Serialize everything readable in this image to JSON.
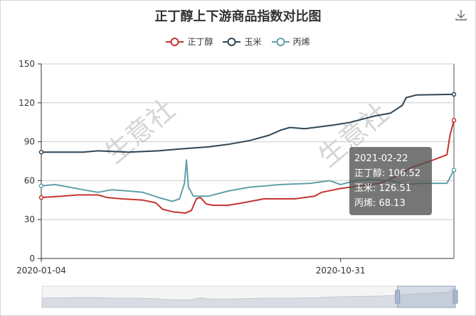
{
  "chart_data": {
    "type": "line",
    "title": "正丁醇上下游商品指数对比图",
    "x_start": "2020-01-04",
    "x_end": "2021-02-22",
    "x_ticks": [
      "2020-01-04",
      "2020-10-31"
    ],
    "ylim": [
      0,
      150
    ],
    "y_ticks": [
      0,
      30,
      60,
      90,
      120,
      150
    ],
    "grid": true,
    "legend_position": "top-center",
    "series": [
      {
        "name": "正丁醇",
        "color": "#c23531",
        "points": [
          [
            "2020-01-04",
            47
          ],
          [
            "2020-01-25",
            48
          ],
          [
            "2020-02-10",
            49
          ],
          [
            "2020-03-01",
            49
          ],
          [
            "2020-03-10",
            47
          ],
          [
            "2020-03-25",
            46
          ],
          [
            "2020-04-15",
            45
          ],
          [
            "2020-04-28",
            43
          ],
          [
            "2020-05-05",
            38
          ],
          [
            "2020-05-15",
            36
          ],
          [
            "2020-05-28",
            35
          ],
          [
            "2020-06-03",
            37
          ],
          [
            "2020-06-08",
            46
          ],
          [
            "2020-06-12",
            47
          ],
          [
            "2020-06-18",
            42
          ],
          [
            "2020-06-25",
            41
          ],
          [
            "2020-07-10",
            41
          ],
          [
            "2020-07-25",
            43
          ],
          [
            "2020-08-15",
            46
          ],
          [
            "2020-09-15",
            46
          ],
          [
            "2020-10-05",
            48
          ],
          [
            "2020-10-12",
            51
          ],
          [
            "2020-10-31",
            54
          ],
          [
            "2020-11-20",
            56
          ],
          [
            "2020-12-10",
            58
          ],
          [
            "2020-12-25",
            63
          ],
          [
            "2021-01-10",
            70
          ],
          [
            "2021-01-25",
            74
          ],
          [
            "2021-02-05",
            77
          ],
          [
            "2021-02-15",
            80
          ],
          [
            "2021-02-18",
            95
          ],
          [
            "2021-02-22",
            106.52
          ]
        ]
      },
      {
        "name": "玉米",
        "color": "#2f4554",
        "points": [
          [
            "2020-01-04",
            82
          ],
          [
            "2020-02-15",
            82
          ],
          [
            "2020-03-01",
            83
          ],
          [
            "2020-04-01",
            82
          ],
          [
            "2020-05-01",
            83
          ],
          [
            "2020-06-01",
            85
          ],
          [
            "2020-06-20",
            86
          ],
          [
            "2020-07-10",
            88
          ],
          [
            "2020-08-01",
            91
          ],
          [
            "2020-08-20",
            95
          ],
          [
            "2020-09-01",
            99
          ],
          [
            "2020-09-10",
            101
          ],
          [
            "2020-09-25",
            100
          ],
          [
            "2020-10-05",
            101
          ],
          [
            "2020-10-25",
            103
          ],
          [
            "2020-11-10",
            105
          ],
          [
            "2020-11-25",
            108
          ],
          [
            "2020-12-05",
            110
          ],
          [
            "2020-12-20",
            112
          ],
          [
            "2021-01-01",
            118
          ],
          [
            "2021-01-05",
            124
          ],
          [
            "2021-01-15",
            126
          ],
          [
            "2021-02-22",
            126.51
          ]
        ]
      },
      {
        "name": "丙烯",
        "color": "#61a0a8",
        "points": [
          [
            "2020-01-04",
            56
          ],
          [
            "2020-01-18",
            57
          ],
          [
            "2020-02-01",
            55
          ],
          [
            "2020-02-15",
            53
          ],
          [
            "2020-03-01",
            51
          ],
          [
            "2020-03-15",
            53
          ],
          [
            "2020-04-01",
            52
          ],
          [
            "2020-04-15",
            51
          ],
          [
            "2020-05-01",
            47
          ],
          [
            "2020-05-15",
            44
          ],
          [
            "2020-05-22",
            46
          ],
          [
            "2020-05-27",
            58
          ],
          [
            "2020-05-29",
            76
          ],
          [
            "2020-05-31",
            55
          ],
          [
            "2020-06-05",
            48
          ],
          [
            "2020-06-20",
            48
          ],
          [
            "2020-07-10",
            52
          ],
          [
            "2020-08-01",
            55
          ],
          [
            "2020-09-01",
            57
          ],
          [
            "2020-10-01",
            58
          ],
          [
            "2020-10-20",
            60
          ],
          [
            "2020-10-31",
            57
          ],
          [
            "2020-11-15",
            60
          ],
          [
            "2020-12-01",
            61
          ],
          [
            "2020-12-20",
            60
          ],
          [
            "2021-01-05",
            57
          ],
          [
            "2021-01-20",
            58
          ],
          [
            "2021-02-15",
            58
          ],
          [
            "2021-02-22",
            68.13
          ]
        ]
      }
    ],
    "tooltip": {
      "date": "2021-02-22",
      "lines": [
        "正丁醇: 106.52",
        "玉米: 126.51",
        "丙烯: 68.13"
      ]
    },
    "dataZoom": {
      "start_fraction": 0.86,
      "end_fraction": 1.0
    }
  },
  "watermark": "生意社"
}
